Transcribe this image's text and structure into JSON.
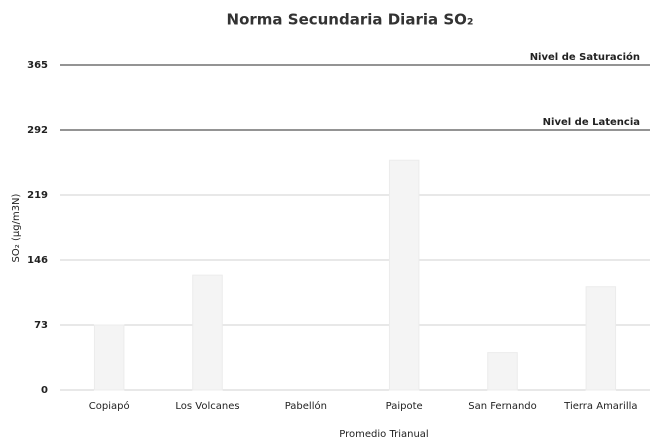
{
  "chart_data": {
    "type": "bar",
    "title": "Norma Secundaria Diaria SO₂",
    "x_label": "Promedio Trianual",
    "y_label": "SO₂ (µg/m3N)",
    "categories": [
      "Copiapó",
      "Los Volcanes",
      "Pabellón",
      "Paipote",
      "San Fernando",
      "Tierra Amarilla"
    ],
    "values": [
      73,
      129,
      0,
      258,
      42,
      116
    ],
    "color": "#f4f4f4",
    "ylim": [
      0,
      365
    ],
    "yticks": [
      0,
      73,
      146,
      219,
      292,
      365
    ],
    "grid": true,
    "reference_lines": [
      {
        "value": 365,
        "label": "Nivel de Saturación"
      },
      {
        "value": 292,
        "label": "Nivel de Latencia"
      }
    ]
  }
}
